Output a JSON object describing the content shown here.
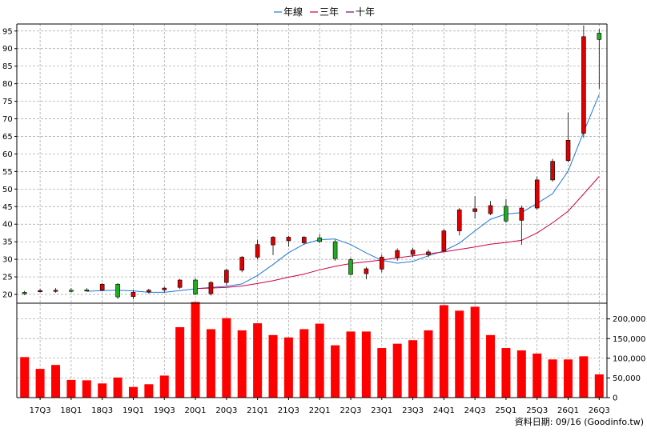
{
  "legend": [
    {
      "label": "年線",
      "color": "#1f77d4"
    },
    {
      "label": "三年",
      "color": "#cc0044"
    },
    {
      "label": "十年",
      "color": "#800080"
    }
  ],
  "footer": "資料日期: 09/16  (Goodinfo.tw)",
  "chart_data": {
    "type": "candlestick+bar",
    "price_axis": {
      "ylim": [
        17.5,
        97
      ],
      "ticks": [
        20,
        25,
        30,
        35,
        40,
        45,
        50,
        55,
        60,
        65,
        70,
        75,
        80,
        85,
        90,
        95
      ]
    },
    "volume_axis": {
      "ylim": [
        0,
        240000
      ],
      "ticks": [
        0,
        50000,
        100000,
        150000,
        200000
      ],
      "tick_labels": [
        "0",
        "50,000",
        "100,000",
        "150,000",
        "200,000"
      ]
    },
    "x_labels": [
      "17Q3",
      "18Q1",
      "18Q3",
      "19Q1",
      "19Q3",
      "20Q1",
      "20Q3",
      "21Q1",
      "21Q3",
      "22Q1",
      "22Q3",
      "23Q1",
      "23Q3",
      "24Q1",
      "24Q3",
      "25Q1",
      "25Q3",
      "26Q1",
      "26Q3"
    ],
    "x_label_start_index": 1,
    "grid": true,
    "colors": {
      "up": "#dd0000",
      "down": "#22aa22",
      "volume": "#ff0000",
      "grid": "#a0a0a0"
    },
    "candles": [
      {
        "o": 20.6,
        "h": 21.0,
        "l": 19.8,
        "c": 20.2
      },
      {
        "o": 21.0,
        "h": 21.6,
        "l": 20.6,
        "c": 21.1
      },
      {
        "o": 21.1,
        "h": 21.8,
        "l": 20.5,
        "c": 21.2
      },
      {
        "o": 21.2,
        "h": 21.8,
        "l": 20.6,
        "c": 21.0
      },
      {
        "o": 21.3,
        "h": 21.8,
        "l": 20.8,
        "c": 21.1
      },
      {
        "o": 21.2,
        "h": 23.2,
        "l": 20.9,
        "c": 22.9
      },
      {
        "o": 22.9,
        "h": 23.2,
        "l": 18.7,
        "c": 19.3
      },
      {
        "o": 19.4,
        "h": 21.2,
        "l": 18.6,
        "c": 20.6
      },
      {
        "o": 20.7,
        "h": 21.6,
        "l": 20.2,
        "c": 21.2
      },
      {
        "o": 21.3,
        "h": 22.2,
        "l": 20.6,
        "c": 21.8
      },
      {
        "o": 22.0,
        "h": 24.4,
        "l": 21.6,
        "c": 24.1
      },
      {
        "o": 24.1,
        "h": 24.6,
        "l": 19.8,
        "c": 20.1
      },
      {
        "o": 20.2,
        "h": 23.8,
        "l": 19.7,
        "c": 23.4
      },
      {
        "o": 23.4,
        "h": 27.3,
        "l": 22.6,
        "c": 26.9
      },
      {
        "o": 26.9,
        "h": 30.9,
        "l": 26.3,
        "c": 30.6
      },
      {
        "o": 30.6,
        "h": 35.6,
        "l": 30.0,
        "c": 34.2
      },
      {
        "o": 34.1,
        "h": 36.6,
        "l": 31.2,
        "c": 36.3
      },
      {
        "o": 35.3,
        "h": 36.7,
        "l": 33.6,
        "c": 36.3
      },
      {
        "o": 34.7,
        "h": 36.6,
        "l": 34.2,
        "c": 36.3
      },
      {
        "o": 36.1,
        "h": 37.1,
        "l": 34.6,
        "c": 35.1
      },
      {
        "o": 35.0,
        "h": 35.6,
        "l": 29.6,
        "c": 30.2
      },
      {
        "o": 29.9,
        "h": 30.4,
        "l": 25.4,
        "c": 25.7
      },
      {
        "o": 25.9,
        "h": 27.8,
        "l": 24.3,
        "c": 27.3
      },
      {
        "o": 27.2,
        "h": 31.3,
        "l": 26.3,
        "c": 30.6
      },
      {
        "o": 30.6,
        "h": 33.1,
        "l": 29.6,
        "c": 32.5
      },
      {
        "o": 31.4,
        "h": 33.3,
        "l": 30.6,
        "c": 32.6
      },
      {
        "o": 31.3,
        "h": 32.8,
        "l": 30.6,
        "c": 32.1
      },
      {
        "o": 32.4,
        "h": 38.6,
        "l": 32.1,
        "c": 38.1
      },
      {
        "o": 38.1,
        "h": 44.6,
        "l": 36.8,
        "c": 44.1
      },
      {
        "o": 43.6,
        "h": 48.0,
        "l": 41.6,
        "c": 44.4
      },
      {
        "o": 43.0,
        "h": 46.6,
        "l": 42.6,
        "c": 45.3
      },
      {
        "o": 45.1,
        "h": 47.1,
        "l": 40.4,
        "c": 40.9
      },
      {
        "o": 41.1,
        "h": 45.3,
        "l": 34.1,
        "c": 44.6
      },
      {
        "o": 44.6,
        "h": 53.6,
        "l": 44.1,
        "c": 52.6
      },
      {
        "o": 52.6,
        "h": 58.6,
        "l": 52.1,
        "c": 57.9
      },
      {
        "o": 58.1,
        "h": 71.8,
        "l": 57.6,
        "c": 63.9
      },
      {
        "o": 65.9,
        "h": 96.6,
        "l": 64.6,
        "c": 93.4
      },
      {
        "o": 94.4,
        "h": 95.6,
        "l": 78.6,
        "c": 92.6
      }
    ],
    "volume": [
      103000,
      73000,
      83000,
      45000,
      44000,
      36000,
      51000,
      27000,
      34000,
      56000,
      179000,
      243000,
      174000,
      202000,
      171000,
      189000,
      159000,
      153000,
      174000,
      188000,
      133000,
      168000,
      168000,
      126000,
      137000,
      146000,
      171000,
      235000,
      221000,
      231000,
      159000,
      126000,
      120000,
      112000,
      97000,
      97000,
      105000,
      59000
    ],
    "series": [
      {
        "name": "年線",
        "color": "#1f77d4",
        "values": [
          null,
          null,
          null,
          null,
          20.9,
          21.1,
          21.2,
          21.0,
          20.6,
          20.6,
          21.1,
          21.6,
          22.0,
          22.3,
          23.0,
          25.4,
          28.5,
          31.9,
          34.3,
          35.6,
          35.8,
          34.2,
          31.8,
          29.7,
          28.9,
          29.4,
          31.0,
          32.4,
          34.6,
          38.1,
          41.4,
          42.9,
          43.3,
          45.9,
          48.7,
          55.1,
          66.3,
          76.9
        ]
      },
      {
        "name": "三年",
        "color": "#cc0044",
        "values": [
          null,
          null,
          null,
          null,
          null,
          null,
          null,
          null,
          null,
          null,
          null,
          21.7,
          21.8,
          22.0,
          22.4,
          23.1,
          23.9,
          24.9,
          25.8,
          27.0,
          28.0,
          28.8,
          29.3,
          29.8,
          30.4,
          31.0,
          31.6,
          32.1,
          32.8,
          33.5,
          34.3,
          34.8,
          35.4,
          37.5,
          40.4,
          43.7,
          48.6,
          53.6
        ]
      },
      {
        "name": "十年",
        "color": "#800080",
        "values": []
      }
    ]
  }
}
